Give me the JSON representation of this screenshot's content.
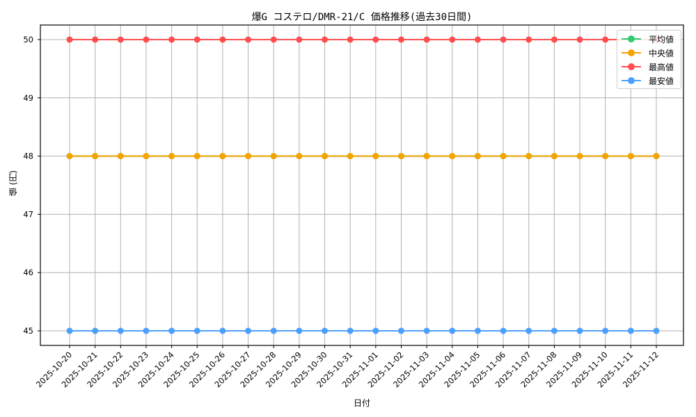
{
  "chart_data": {
    "type": "line",
    "title": "爆G コステロ/DMR-21/C 価格推移(過去30日間)",
    "xlabel": "日付",
    "ylabel": "値 (円)",
    "x": [
      "2025-10-20",
      "2025-10-21",
      "2025-10-22",
      "2025-10-23",
      "2025-10-24",
      "2025-10-25",
      "2025-10-26",
      "2025-10-27",
      "2025-10-28",
      "2025-10-29",
      "2025-10-30",
      "2025-10-31",
      "2025-11-01",
      "2025-11-02",
      "2025-11-03",
      "2025-11-04",
      "2025-11-05",
      "2025-11-06",
      "2025-11-07",
      "2025-11-08",
      "2025-11-09",
      "2025-11-10",
      "2025-11-11",
      "2025-11-12"
    ],
    "series": [
      {
        "name": "平均値",
        "color": "#2ecc71",
        "values": [
          48,
          48,
          48,
          48,
          48,
          48,
          48,
          48,
          48,
          48,
          48,
          48,
          48,
          48,
          48,
          48,
          48,
          48,
          48,
          48,
          48,
          48,
          48,
          48
        ]
      },
      {
        "name": "中央値",
        "color": "#f5a300",
        "values": [
          48,
          48,
          48,
          48,
          48,
          48,
          48,
          48,
          48,
          48,
          48,
          48,
          48,
          48,
          48,
          48,
          48,
          48,
          48,
          48,
          48,
          48,
          48,
          48
        ]
      },
      {
        "name": "最高値",
        "color": "#ff4d4d",
        "values": [
          50,
          50,
          50,
          50,
          50,
          50,
          50,
          50,
          50,
          50,
          50,
          50,
          50,
          50,
          50,
          50,
          50,
          50,
          50,
          50,
          50,
          50,
          50,
          50
        ]
      },
      {
        "name": "最安値",
        "color": "#4d9fff",
        "values": [
          45,
          45,
          45,
          45,
          45,
          45,
          45,
          45,
          45,
          45,
          45,
          45,
          45,
          45,
          45,
          45,
          45,
          45,
          45,
          45,
          45,
          45,
          45,
          45
        ]
      }
    ],
    "yticks": [
      45,
      46,
      47,
      48,
      49,
      50
    ],
    "ylim": [
      44.75,
      50.25
    ],
    "grid": true,
    "legend_position": "upper right"
  }
}
